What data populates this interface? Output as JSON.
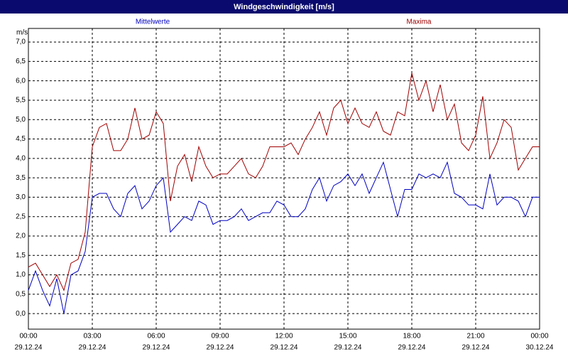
{
  "chart_data": {
    "type": "line",
    "title": "Windgeschwindigkeit [m/s]",
    "y_label": "m/s",
    "x": [
      0,
      20,
      40,
      60,
      80,
      100,
      120,
      140,
      160,
      180,
      200,
      220,
      240,
      260,
      280,
      300,
      320,
      340,
      360,
      380,
      400,
      420,
      440,
      460,
      480,
      500,
      520,
      540,
      560,
      580,
      600,
      620,
      640,
      660,
      680,
      700,
      720,
      740,
      760,
      780,
      800,
      820,
      840,
      860,
      880,
      900,
      920,
      940,
      960,
      980,
      1000,
      1020,
      1040,
      1060,
      1080,
      1100,
      1120,
      1140,
      1160,
      1180,
      1200,
      1220,
      1240,
      1260,
      1280,
      1300,
      1320,
      1340,
      1360,
      1380,
      1400,
      1420,
      1440
    ],
    "series": [
      {
        "name": "Mittelwerte",
        "color": "#0000c0",
        "values": [
          0.6,
          1.1,
          0.6,
          0.2,
          0.9,
          0.0,
          1.0,
          1.1,
          1.6,
          3.0,
          3.1,
          3.1,
          2.7,
          2.5,
          3.1,
          3.3,
          2.7,
          2.9,
          3.3,
          3.5,
          2.1,
          2.3,
          2.5,
          2.4,
          2.9,
          2.8,
          2.3,
          2.4,
          2.4,
          2.5,
          2.7,
          2.4,
          2.5,
          2.6,
          2.6,
          2.9,
          2.8,
          2.5,
          2.5,
          2.7,
          3.2,
          3.5,
          2.9,
          3.3,
          3.4,
          3.6,
          3.3,
          3.6,
          3.1,
          3.5,
          3.9,
          3.2,
          2.5,
          3.2,
          3.2,
          3.6,
          3.5,
          3.6,
          3.5,
          3.9,
          3.1,
          3.0,
          2.8,
          2.8,
          2.7,
          3.6,
          2.8,
          3.0,
          3.0,
          2.9,
          2.5,
          3.0,
          3.0
        ]
      },
      {
        "name": "Maxima",
        "color": "#a00000",
        "values": [
          1.2,
          1.3,
          1.0,
          0.7,
          1.0,
          0.6,
          1.3,
          1.4,
          2.1,
          4.3,
          4.8,
          4.9,
          4.2,
          4.2,
          4.5,
          5.3,
          4.5,
          4.6,
          5.2,
          4.9,
          2.9,
          3.8,
          4.1,
          3.4,
          4.3,
          3.8,
          3.5,
          3.6,
          3.6,
          3.8,
          4.0,
          3.6,
          3.5,
          3.8,
          4.3,
          4.3,
          4.3,
          4.4,
          4.1,
          4.5,
          4.8,
          5.2,
          4.6,
          5.3,
          5.5,
          4.9,
          5.3,
          4.9,
          4.8,
          5.2,
          4.7,
          4.6,
          5.2,
          5.1,
          6.2,
          5.5,
          6.0,
          5.2,
          5.9,
          5.0,
          5.4,
          4.4,
          4.2,
          4.6,
          5.6,
          4.0,
          4.4,
          5.0,
          4.8,
          3.7,
          4.0,
          4.3,
          4.3
        ]
      }
    ],
    "xlim": [
      0,
      1440
    ],
    "xticks": [
      {
        "value": 0,
        "label": "00:00"
      },
      {
        "value": 180,
        "label": "03:00"
      },
      {
        "value": 360,
        "label": "06:00"
      },
      {
        "value": 540,
        "label": "09:00"
      },
      {
        "value": 720,
        "label": "12:00"
      },
      {
        "value": 900,
        "label": "15:00"
      },
      {
        "value": 1080,
        "label": "18:00"
      },
      {
        "value": 1260,
        "label": "21:00"
      },
      {
        "value": 1440,
        "label": "00:00"
      }
    ],
    "xtick_dates": [
      "29.12.24",
      "29.12.24",
      "29.12.24",
      "29.12.24",
      "29.12.24",
      "29.12.24",
      "29.12.24",
      "29.12.24",
      "30.12.24"
    ],
    "ylim": [
      -0.4,
      7.35
    ],
    "yticks": [
      {
        "value": 0,
        "label": "0,0"
      },
      {
        "value": 0.5,
        "label": "0,5"
      },
      {
        "value": 1,
        "label": "1,0"
      },
      {
        "value": 1.5,
        "label": "1,5"
      },
      {
        "value": 2,
        "label": "2,0"
      },
      {
        "value": 2.5,
        "label": "2,5"
      },
      {
        "value": 3,
        "label": "3,0"
      },
      {
        "value": 3.5,
        "label": "3,5"
      },
      {
        "value": 4,
        "label": "4,0"
      },
      {
        "value": 4.5,
        "label": "4,5"
      },
      {
        "value": 5,
        "label": "5,0"
      },
      {
        "value": 5.5,
        "label": "5,5"
      },
      {
        "value": 6,
        "label": "6,0"
      },
      {
        "value": 6.5,
        "label": "6,5"
      },
      {
        "value": 7,
        "label": "7,0"
      }
    ],
    "grid": true
  }
}
